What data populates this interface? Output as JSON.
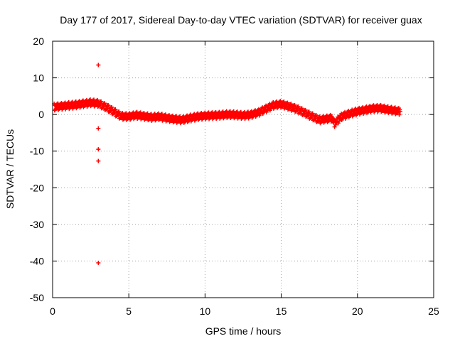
{
  "chart_data": {
    "type": "scatter",
    "title": "Day 177 of 2017, Sidereal Day-to-day VTEC variation (SDTVAR) for receiver guax",
    "xlabel": "GPS time / hours",
    "ylabel": "SDTVAR / TECUs",
    "xlim": [
      0,
      25
    ],
    "ylim": [
      -50,
      20
    ],
    "xticks": [
      0,
      5,
      10,
      15,
      20,
      25
    ],
    "yticks": [
      -50,
      -40,
      -30,
      -20,
      -10,
      0,
      10,
      20
    ],
    "grid": true,
    "marker": "+",
    "colors": {
      "series": "#ff0000",
      "axis": "#000000",
      "grid": "#a0a0a0"
    },
    "series": [
      {
        "name": "SDTVAR",
        "trend_points": [
          [
            0.1,
            2.0
          ],
          [
            0.5,
            2.2
          ],
          [
            1.0,
            2.4
          ],
          [
            1.5,
            2.6
          ],
          [
            2.0,
            2.9
          ],
          [
            2.5,
            3.2
          ],
          [
            3.0,
            3.0
          ],
          [
            3.5,
            2.0
          ],
          [
            4.0,
            0.8
          ],
          [
            4.5,
            -0.5
          ],
          [
            5.0,
            -0.6
          ],
          [
            5.5,
            -0.2
          ],
          [
            6.0,
            -0.5
          ],
          [
            6.5,
            -0.8
          ],
          [
            7.0,
            -0.6
          ],
          [
            7.5,
            -1.0
          ],
          [
            8.0,
            -1.3
          ],
          [
            8.5,
            -1.5
          ],
          [
            9.0,
            -1.0
          ],
          [
            9.5,
            -0.6
          ],
          [
            10.0,
            -0.4
          ],
          [
            10.5,
            -0.3
          ],
          [
            11.0,
            -0.2
          ],
          [
            11.5,
            0.0
          ],
          [
            12.0,
            -0.1
          ],
          [
            12.5,
            -0.3
          ],
          [
            13.0,
            -0.1
          ],
          [
            13.5,
            0.5
          ],
          [
            14.0,
            1.5
          ],
          [
            14.5,
            2.5
          ],
          [
            15.0,
            2.8
          ],
          [
            15.5,
            2.2
          ],
          [
            16.0,
            1.5
          ],
          [
            16.5,
            0.5
          ],
          [
            17.0,
            -0.5
          ],
          [
            17.5,
            -1.5
          ],
          [
            18.0,
            -1.2
          ],
          [
            18.3,
            -1.0
          ],
          [
            18.5,
            -2.5
          ],
          [
            18.8,
            -1.2
          ],
          [
            19.0,
            -0.5
          ],
          [
            19.5,
            0.2
          ],
          [
            20.0,
            0.8
          ],
          [
            20.5,
            1.2
          ],
          [
            21.0,
            1.6
          ],
          [
            21.5,
            1.7
          ],
          [
            22.0,
            1.3
          ],
          [
            22.5,
            1.0
          ],
          [
            22.8,
            0.8
          ]
        ],
        "outliers": [
          [
            3.0,
            13.5
          ],
          [
            3.0,
            -3.8
          ],
          [
            3.0,
            -9.5
          ],
          [
            3.0,
            -12.7
          ],
          [
            3.0,
            -40.5
          ]
        ]
      }
    ]
  }
}
